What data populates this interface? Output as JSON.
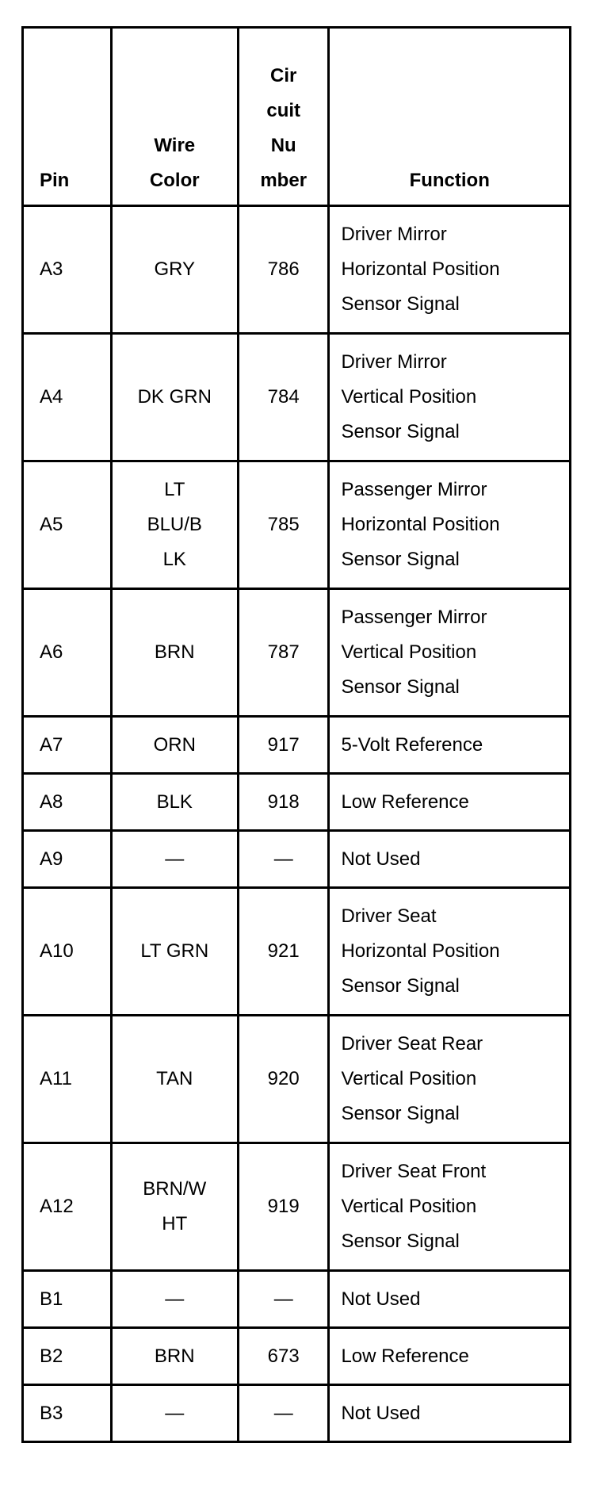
{
  "headers": {
    "pin": "Pin",
    "wire_color": [
      "Wire",
      "Color"
    ],
    "circuit_number": [
      "Cir",
      "cuit",
      "Nu",
      "mber"
    ],
    "function": "Function"
  },
  "rows": [
    {
      "pin": "A3",
      "wire": [
        "GRY"
      ],
      "circuit": "786",
      "function": [
        "Driver Mirror",
        "Horizontal Position",
        "Sensor Signal"
      ]
    },
    {
      "pin": "A4",
      "wire": [
        "DK GRN"
      ],
      "circuit": "784",
      "function": [
        "Driver Mirror",
        "Vertical Position",
        "Sensor Signal"
      ]
    },
    {
      "pin": "A5",
      "wire": [
        "LT",
        "BLU/B",
        "LK"
      ],
      "circuit": "785",
      "function": [
        "Passenger Mirror",
        "Horizontal Position",
        "Sensor Signal"
      ]
    },
    {
      "pin": "A6",
      "wire": [
        "BRN"
      ],
      "circuit": "787",
      "function": [
        "Passenger Mirror",
        "Vertical Position",
        "Sensor Signal"
      ]
    },
    {
      "pin": "A7",
      "wire": [
        "ORN"
      ],
      "circuit": "917",
      "function": [
        "5-Volt Reference"
      ]
    },
    {
      "pin": "A8",
      "wire": [
        "BLK"
      ],
      "circuit": "918",
      "function": [
        "Low Reference"
      ]
    },
    {
      "pin": "A9",
      "wire": [
        "—"
      ],
      "circuit": "—",
      "function": [
        "Not Used"
      ]
    },
    {
      "pin": "A10",
      "wire": [
        "LT GRN"
      ],
      "circuit": "921",
      "function": [
        "Driver Seat",
        "Horizontal Position",
        "Sensor Signal"
      ]
    },
    {
      "pin": "A11",
      "wire": [
        "TAN"
      ],
      "circuit": "920",
      "function": [
        "Driver Seat Rear",
        "Vertical Position",
        "Sensor Signal"
      ]
    },
    {
      "pin": "A12",
      "wire": [
        "BRN/W",
        "HT"
      ],
      "circuit": "919",
      "function": [
        "Driver Seat Front",
        "Vertical Position",
        "Sensor Signal"
      ]
    },
    {
      "pin": "B1",
      "wire": [
        "—"
      ],
      "circuit": "—",
      "function": [
        "Not Used"
      ]
    },
    {
      "pin": "B2",
      "wire": [
        "BRN"
      ],
      "circuit": "673",
      "function": [
        "Low Reference"
      ]
    },
    {
      "pin": "B3",
      "wire": [
        "—"
      ],
      "circuit": "—",
      "function": [
        "Not Used"
      ]
    }
  ]
}
